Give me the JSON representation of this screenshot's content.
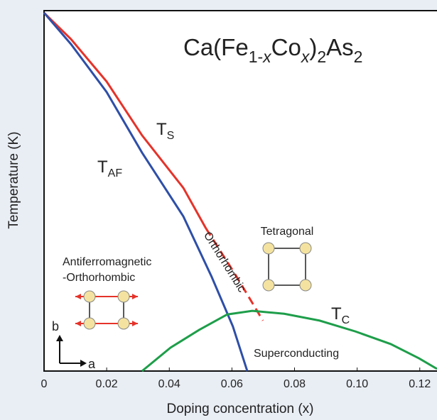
{
  "chart_data": {
    "type": "line",
    "title_parts": [
      {
        "text": "Ca(Fe",
        "sub": false,
        "italic": false
      },
      {
        "text": "1-",
        "sub": true,
        "italic": false
      },
      {
        "text": "x",
        "sub": true,
        "italic": true
      },
      {
        "text": "Co",
        "sub": false,
        "italic": false
      },
      {
        "text": "x",
        "sub": true,
        "italic": true
      },
      {
        "text": ")",
        "sub": false,
        "italic": false
      },
      {
        "text": "2",
        "sub": true,
        "italic": false
      },
      {
        "text": "As",
        "sub": false,
        "italic": false
      },
      {
        "text": "2",
        "sub": true,
        "italic": false
      }
    ],
    "x_label": "Doping concentration (x)",
    "y_label": "Temperature (K)",
    "xlim": [
      0,
      0.1255
    ],
    "ylim": [
      0,
      100
    ],
    "xticks": [
      0,
      0.02,
      0.04,
      0.06,
      0.08,
      {
        "value": 0.1,
        "label": "0.10"
      },
      0.12
    ],
    "series": [
      {
        "name": "T",
        "sub": "S",
        "color": "#e5332a",
        "dashed": false,
        "x": [
          0,
          0.0086,
          0.02,
          0.0313,
          0.0445,
          0.0517
        ],
        "values": [
          99.4,
          92.1,
          80.3,
          65.4,
          50.8,
          39.6
        ]
      },
      {
        "color": "#e5332a",
        "dashed": true,
        "x": [
          0.0517,
          0.0608,
          0.0699
        ],
        "values": [
          39.6,
          27.2,
          14.0
        ]
      },
      {
        "name": "T",
        "sub": "AF",
        "color": "#2e4fa8",
        "dashed": false,
        "x": [
          0,
          0.0086,
          0.02,
          0.0313,
          0.0445,
          0.0535,
          0.0603,
          0.0649
        ],
        "values": [
          99.4,
          90.7,
          77.4,
          60.6,
          42.9,
          26.2,
          12.4,
          0
        ]
      },
      {
        "name": "T",
        "sub": "C",
        "color": "#1e9e4a",
        "dashed": false,
        "x": [
          0.0313,
          0.0404,
          0.0495,
          0.0585,
          0.0665,
          0.0767,
          0.088,
          0.0994,
          0.1107,
          0.1198,
          0.1255
        ],
        "values": [
          0,
          6.5,
          11.4,
          15.7,
          16.7,
          15.9,
          14.0,
          11.0,
          7.5,
          3.5,
          0.6
        ]
      }
    ],
    "annotations": [
      "Orthorhombic",
      "Tetragonal",
      "Antiferromagnetic",
      "-Orthorhombic",
      "Superconducting",
      "b",
      "a"
    ]
  }
}
